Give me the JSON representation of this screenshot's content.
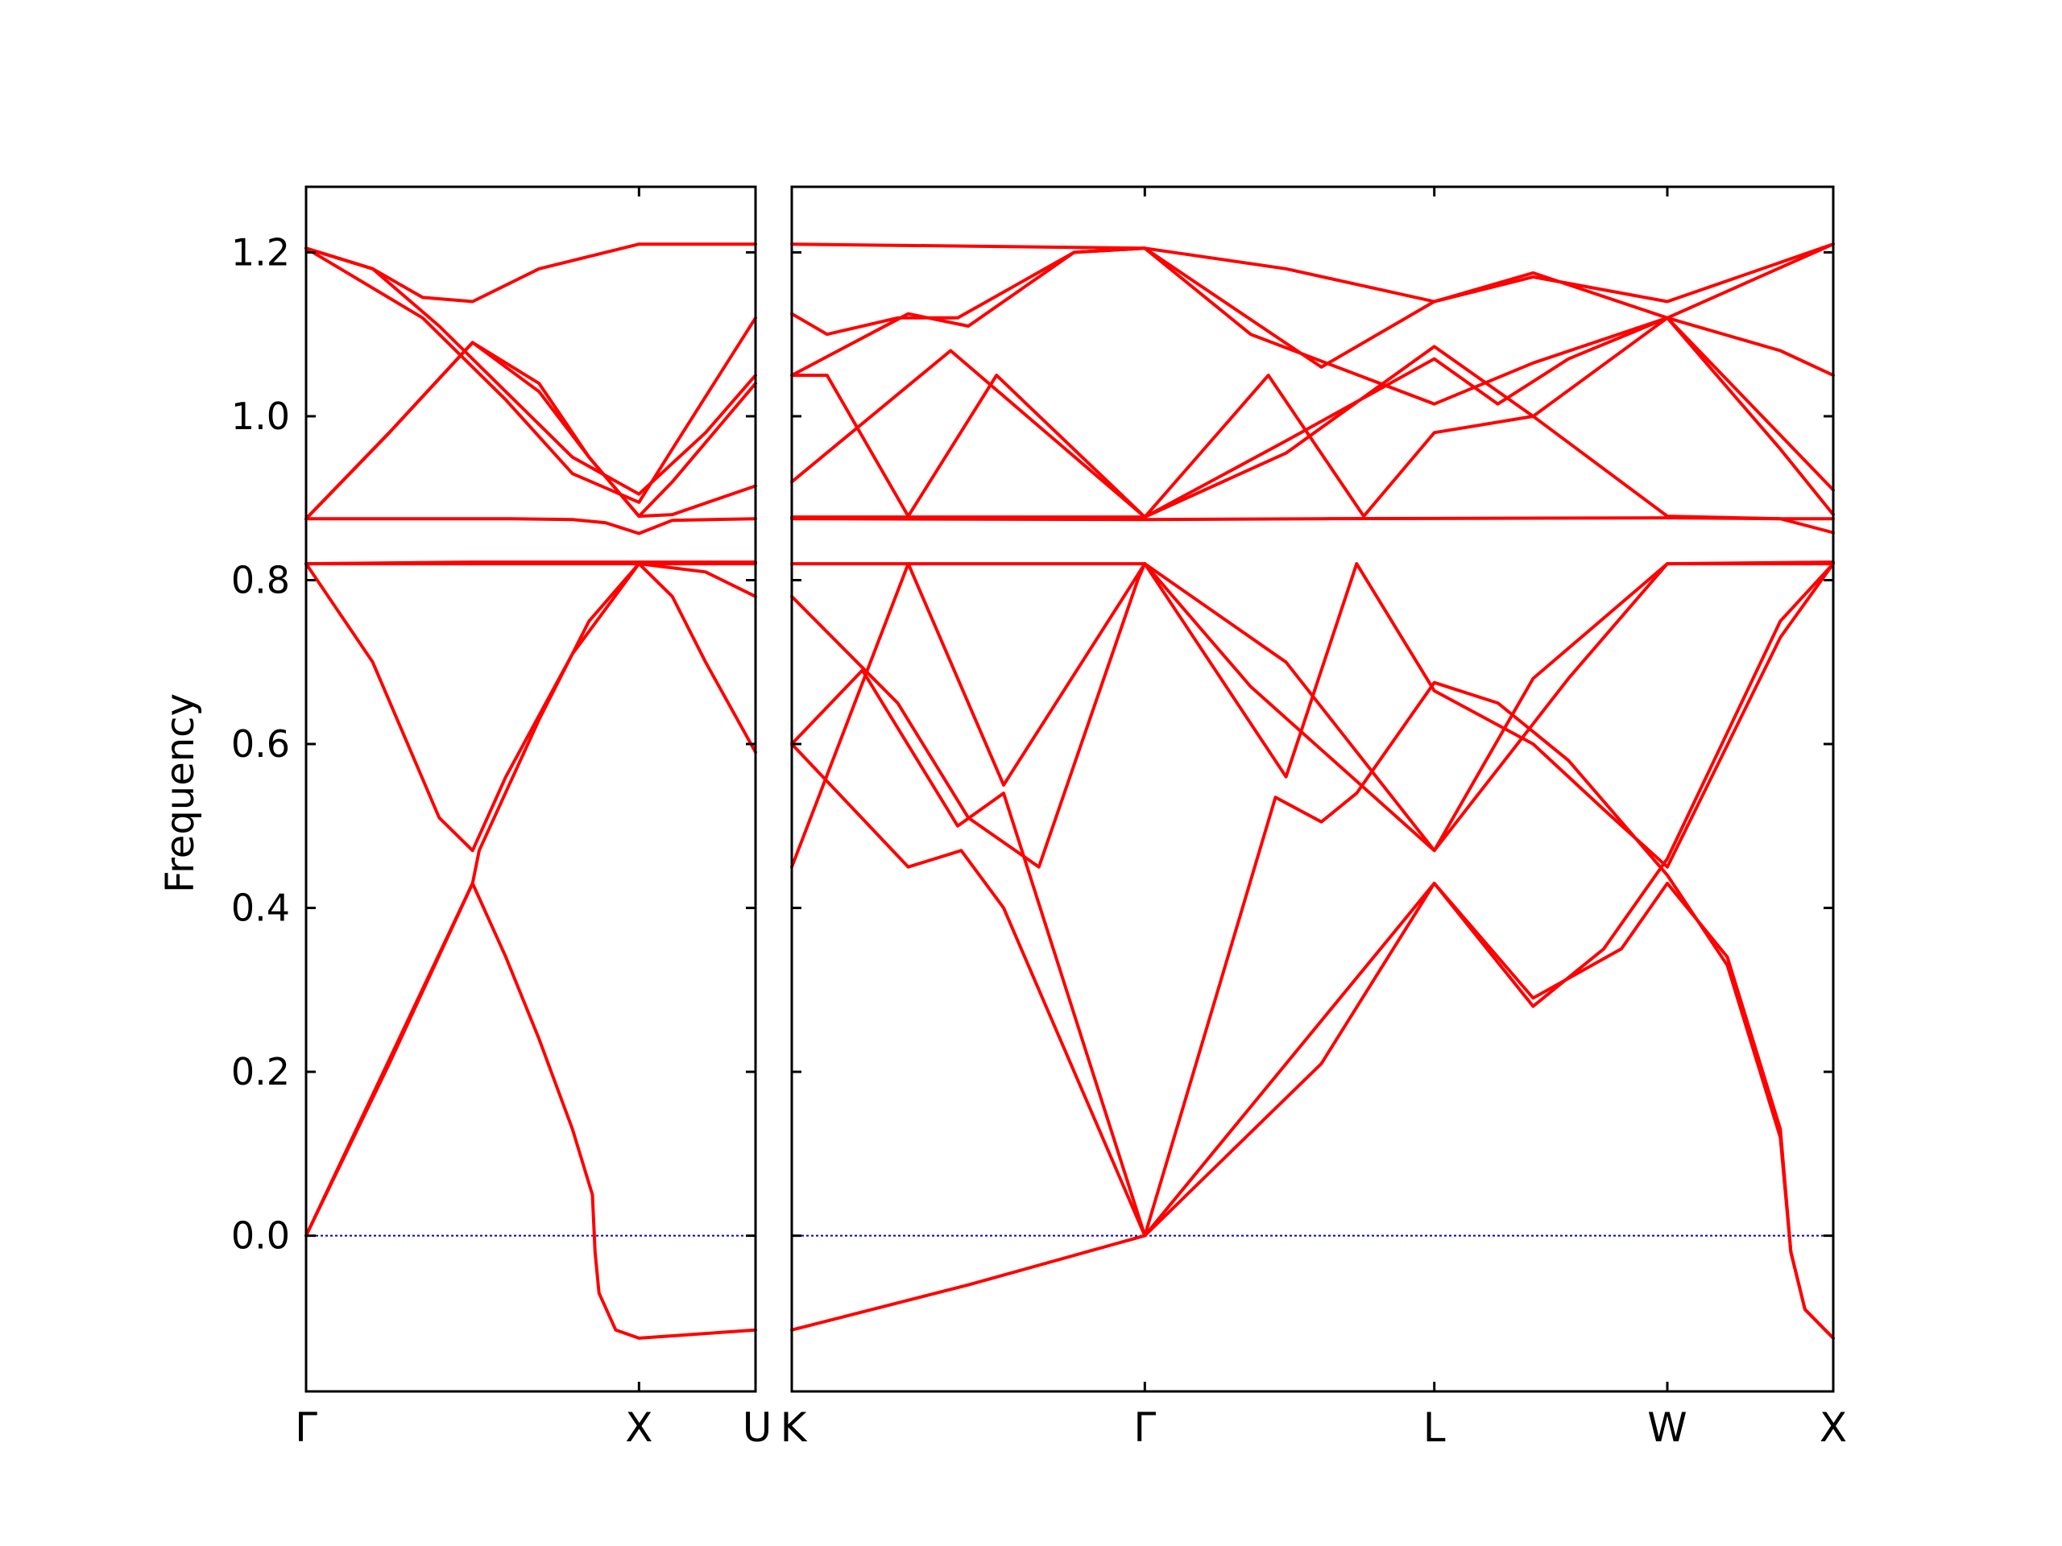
{
  "chart_data": {
    "type": "line",
    "ylabel": "Frequency",
    "ylim": [
      -0.19,
      1.28
    ],
    "yticks": [
      0.0,
      0.2,
      0.4,
      0.6,
      0.8,
      1.0,
      1.2
    ],
    "ytick_labels": [
      "0.0",
      "0.2",
      "0.4",
      "0.6",
      "0.8",
      "1.0",
      "1.2"
    ],
    "line_color": "#ff0000",
    "zero_line_color": "#0000cc",
    "panels": [
      {
        "id": "gamma-x-u",
        "xlim": [
          0,
          1.35
        ],
        "ticks": [
          {
            "x": 0,
            "label": "Γ"
          },
          {
            "x": 1.0,
            "label": "X"
          },
          {
            "x": 1.35,
            "label": "U"
          }
        ],
        "bands": [
          {
            "name": "b1",
            "points": [
              [
                0,
                0
              ],
              [
                0.5,
                0.43
              ],
              [
                0.6,
                0.34
              ],
              [
                0.7,
                0.24
              ],
              [
                0.8,
                0.13
              ],
              [
                0.86,
                0.05
              ],
              [
                0.868,
                -0.02
              ],
              [
                0.88,
                -0.07
              ],
              [
                0.93,
                -0.115
              ],
              [
                1.0,
                -0.125
              ],
              [
                1.35,
                -0.115
              ]
            ]
          },
          {
            "name": "b2",
            "points": [
              [
                0,
                0
              ],
              [
                0.25,
                0.21
              ],
              [
                0.5,
                0.43
              ],
              [
                0.52,
                0.47
              ],
              [
                0.7,
                0.63
              ],
              [
                0.85,
                0.75
              ],
              [
                1.0,
                0.82
              ],
              [
                1.1,
                0.78
              ],
              [
                1.2,
                0.7
              ],
              [
                1.35,
                0.59
              ]
            ]
          },
          {
            "name": "b3",
            "points": [
              [
                0,
                0.82
              ],
              [
                0.2,
                0.7
              ],
              [
                0.4,
                0.51
              ],
              [
                0.5,
                0.47
              ],
              [
                0.6,
                0.56
              ],
              [
                0.8,
                0.71
              ],
              [
                1.0,
                0.82
              ],
              [
                1.35,
                0.82
              ]
            ]
          },
          {
            "name": "b4",
            "points": [
              [
                0,
                0.82
              ],
              [
                0.5,
                0.82
              ],
              [
                1.0,
                0.82
              ],
              [
                1.2,
                0.81
              ],
              [
                1.35,
                0.78
              ]
            ]
          },
          {
            "name": "b5",
            "points": [
              [
                0,
                0.82
              ],
              [
                0.5,
                0.822
              ],
              [
                1.0,
                0.822
              ],
              [
                1.35,
                0.822
              ]
            ]
          },
          {
            "name": "b6",
            "points": [
              [
                0,
                0.875
              ],
              [
                0.6,
                0.875
              ],
              [
                0.8,
                0.874
              ],
              [
                0.9,
                0.87
              ],
              [
                1.0,
                0.857
              ],
              [
                1.1,
                0.873
              ],
              [
                1.35,
                0.875
              ]
            ]
          },
          {
            "name": "b7",
            "points": [
              [
                0,
                0.875
              ],
              [
                0.25,
                0.98
              ],
              [
                0.5,
                1.09
              ],
              [
                0.7,
                1.04
              ],
              [
                0.85,
                0.95
              ],
              [
                1.0,
                0.878
              ],
              [
                1.1,
                0.88
              ],
              [
                1.35,
                0.915
              ]
            ]
          },
          {
            "name": "b8",
            "points": [
              [
                0,
                0.875
              ],
              [
                0.25,
                0.98
              ],
              [
                0.5,
                1.09
              ],
              [
                0.7,
                1.03
              ],
              [
                0.85,
                0.95
              ],
              [
                1.0,
                0.878
              ],
              [
                1.1,
                0.92
              ],
              [
                1.35,
                1.04
              ]
            ]
          },
          {
            "name": "b9",
            "points": [
              [
                0,
                1.205
              ],
              [
                0.2,
                1.18
              ],
              [
                0.35,
                1.145
              ],
              [
                0.5,
                1.14
              ],
              [
                0.7,
                1.18
              ],
              [
                1.0,
                1.21
              ],
              [
                1.35,
                1.21
              ]
            ]
          },
          {
            "name": "b10",
            "points": [
              [
                0,
                1.205
              ],
              [
                0.2,
                1.18
              ],
              [
                0.4,
                1.11
              ],
              [
                0.6,
                1.03
              ],
              [
                0.8,
                0.95
              ],
              [
                1.0,
                0.905
              ],
              [
                1.2,
                0.98
              ],
              [
                1.35,
                1.05
              ]
            ]
          },
          {
            "name": "b11",
            "points": [
              [
                0,
                1.205
              ],
              [
                0.35,
                1.12
              ],
              [
                0.6,
                1.02
              ],
              [
                0.8,
                0.93
              ],
              [
                1.0,
                0.895
              ],
              [
                1.1,
                0.96
              ],
              [
                1.35,
                1.12
              ]
            ]
          }
        ]
      },
      {
        "id": "k-gamma-l-w-x",
        "xlim": [
          0,
          2.95
        ],
        "ticks": [
          {
            "x": 0,
            "label": "K"
          },
          {
            "x": 1.0,
            "label": "Γ"
          },
          {
            "x": 1.82,
            "label": "L"
          },
          {
            "x": 2.48,
            "label": "W"
          },
          {
            "x": 2.95,
            "label": "X"
          }
        ],
        "bands": [
          {
            "name": "b1",
            "points": [
              [
                0,
                -0.115
              ],
              [
                0.5,
                -0.06
              ],
              [
                1.0,
                0.0
              ],
              [
                1.82,
                0.43
              ],
              [
                2.1,
                0.29
              ],
              [
                2.35,
                0.35
              ],
              [
                2.48,
                0.43
              ],
              [
                2.65,
                0.34
              ],
              [
                2.8,
                0.13
              ],
              [
                2.83,
                -0.02
              ],
              [
                2.87,
                -0.09
              ],
              [
                2.95,
                -0.125
              ]
            ]
          },
          {
            "name": "b2",
            "points": [
              [
                0,
                0.45
              ],
              [
                0.33,
                0.82
              ],
              [
                0.6,
                0.55
              ],
              [
                1.0,
                0.82
              ],
              [
                1.4,
                0.56
              ],
              [
                1.6,
                0.82
              ],
              [
                1.82,
                0.665
              ],
              [
                2.1,
                0.6
              ],
              [
                2.3,
                0.52
              ],
              [
                2.48,
                0.45
              ],
              [
                2.8,
                0.73
              ],
              [
                2.95,
                0.82
              ]
            ]
          },
          {
            "name": "b3",
            "points": [
              [
                0,
                0.6
              ],
              [
                0.2,
                0.69
              ],
              [
                0.47,
                0.5
              ],
              [
                0.6,
                0.54
              ],
              [
                1.0,
                0.0
              ],
              [
                1.37,
                0.535
              ],
              [
                1.5,
                0.505
              ],
              [
                1.6,
                0.54
              ],
              [
                1.82,
                0.675
              ],
              [
                2.0,
                0.65
              ],
              [
                2.2,
                0.58
              ],
              [
                2.48,
                0.44
              ],
              [
                2.65,
                0.33
              ],
              [
                2.8,
                0.12
              ],
              [
                2.83,
                -0.02
              ],
              [
                2.87,
                -0.09
              ],
              [
                2.95,
                -0.125
              ]
            ]
          },
          {
            "name": "b4",
            "points": [
              [
                0,
                0.6
              ],
              [
                0.33,
                0.45
              ],
              [
                0.48,
                0.47
              ],
              [
                0.6,
                0.4
              ],
              [
                1.0,
                0.0
              ],
              [
                1.5,
                0.21
              ],
              [
                1.82,
                0.43
              ],
              [
                2.1,
                0.28
              ],
              [
                2.3,
                0.35
              ],
              [
                2.48,
                0.46
              ],
              [
                2.8,
                0.75
              ],
              [
                2.95,
                0.82
              ]
            ]
          },
          {
            "name": "b5",
            "points": [
              [
                0,
                0.78
              ],
              [
                0.3,
                0.65
              ],
              [
                0.5,
                0.51
              ],
              [
                0.7,
                0.45
              ],
              [
                0.98,
                0.8
              ],
              [
                1.0,
                0.82
              ],
              [
                1.3,
                0.67
              ],
              [
                1.82,
                0.47
              ],
              [
                2.2,
                0.68
              ],
              [
                2.48,
                0.82
              ],
              [
                2.95,
                0.82
              ]
            ]
          },
          {
            "name": "b6",
            "points": [
              [
                0,
                0.82
              ],
              [
                1.0,
                0.82
              ],
              [
                1.4,
                0.7
              ],
              [
                1.82,
                0.47
              ],
              [
                2.1,
                0.68
              ],
              [
                2.48,
                0.82
              ],
              [
                2.95,
                0.822
              ]
            ]
          },
          {
            "name": "b7",
            "points": [
              [
                0,
                0.875
              ],
              [
                1.0,
                0.874
              ],
              [
                1.5,
                0.875
              ],
              [
                2.48,
                0.876
              ],
              [
                2.8,
                0.875
              ],
              [
                2.95,
                0.875
              ]
            ]
          },
          {
            "name": "b8",
            "points": [
              [
                0,
                0.877
              ],
              [
                0.33,
                0.877
              ],
              [
                1.0,
                0.877
              ],
              [
                1.4,
                0.955
              ],
              [
                1.82,
                1.085
              ],
              [
                2.1,
                1.0
              ],
              [
                2.48,
                0.878
              ],
              [
                2.8,
                0.875
              ],
              [
                2.95,
                0.858
              ]
            ]
          },
          {
            "name": "b9",
            "points": [
              [
                0,
                1.05
              ],
              [
                0.1,
                1.05
              ],
              [
                0.33,
                0.878
              ],
              [
                0.58,
                1.05
              ],
              [
                1.0,
                0.877
              ],
              [
                1.35,
                1.05
              ],
              [
                1.62,
                0.878
              ],
              [
                1.82,
                0.98
              ],
              [
                2.1,
                1.0
              ],
              [
                2.48,
                1.12
              ],
              [
                2.95,
                0.91
              ]
            ]
          },
          {
            "name": "b10",
            "points": [
              [
                0,
                0.92
              ],
              [
                0.45,
                1.08
              ],
              [
                1.0,
                0.877
              ],
              [
                1.4,
                0.97
              ],
              [
                1.82,
                1.07
              ],
              [
                2.0,
                1.015
              ],
              [
                2.2,
                1.07
              ],
              [
                2.48,
                1.12
              ],
              [
                2.8,
                0.96
              ],
              [
                2.95,
                0.88
              ]
            ]
          },
          {
            "name": "b11",
            "points": [
              [
                0,
                1.125
              ],
              [
                0.1,
                1.1
              ],
              [
                0.3,
                1.12
              ],
              [
                0.47,
                1.12
              ],
              [
                0.8,
                1.2
              ],
              [
                1.0,
                1.205
              ],
              [
                1.3,
                1.1
              ],
              [
                1.82,
                1.015
              ],
              [
                2.1,
                1.065
              ],
              [
                2.48,
                1.12
              ],
              [
                2.95,
                1.21
              ]
            ]
          },
          {
            "name": "b12",
            "points": [
              [
                0,
                1.05
              ],
              [
                0.33,
                1.125
              ],
              [
                0.5,
                1.11
              ],
              [
                0.8,
                1.2
              ],
              [
                1.0,
                1.205
              ],
              [
                1.5,
                1.06
              ],
              [
                1.82,
                1.14
              ],
              [
                2.1,
                1.17
              ],
              [
                2.48,
                1.14
              ],
              [
                2.95,
                1.21
              ]
            ]
          },
          {
            "name": "b13",
            "points": [
              [
                0,
                1.21
              ],
              [
                1.0,
                1.205
              ],
              [
                1.4,
                1.18
              ],
              [
                1.82,
                1.14
              ],
              [
                2.1,
                1.175
              ],
              [
                2.48,
                1.12
              ],
              [
                2.8,
                1.08
              ],
              [
                2.95,
                1.05
              ]
            ]
          }
        ]
      }
    ]
  }
}
